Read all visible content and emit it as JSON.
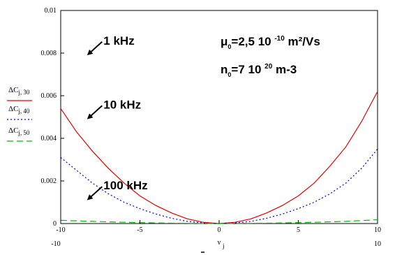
{
  "chart_data": {
    "type": "line",
    "xlabel_main": "v",
    "xlabel_sub": "j",
    "x_min_label": "-10",
    "x_max_label": "10",
    "xlim": [
      -10,
      10
    ],
    "ylim": [
      0,
      0.01
    ],
    "xticks": [
      -10,
      -5,
      0,
      5,
      10
    ],
    "yticks": [
      0,
      0.002,
      0.004,
      0.006,
      0.008,
      0.01
    ],
    "xtick_labels": [
      "-10",
      "-5",
      "0",
      "5",
      "10"
    ],
    "ytick_labels": [
      "0",
      "0.002",
      "0.004",
      "0.006",
      "0.008",
      "0.01"
    ],
    "grid": false,
    "legend": [
      {
        "main": "ΔC",
        "sub": "j, 30",
        "color": "#e00000",
        "dash": "solid"
      },
      {
        "main": "ΔC",
        "sub": "j, 40",
        "color": "#0000cc",
        "dash": "dotted"
      },
      {
        "main": "ΔC",
        "sub": "j, 50",
        "color": "#00bb00",
        "dash": "dashed"
      }
    ],
    "series": [
      {
        "color": "#e00000",
        "dash": "solid",
        "x": [
          -10,
          -9,
          -8,
          -7,
          -6,
          -5,
          -4,
          -3,
          -2,
          -1,
          0,
          1,
          2,
          3,
          4,
          5,
          6,
          7,
          8,
          9,
          10
        ],
        "values": [
          0.0054,
          0.0043,
          0.0034,
          0.0026,
          0.0019,
          0.0013,
          0.00085,
          0.0005,
          0.00022,
          6e-05,
          0,
          6e-05,
          0.00022,
          0.0005,
          0.00085,
          0.0013,
          0.0019,
          0.0027,
          0.0036,
          0.0048,
          0.0062
        ]
      },
      {
        "color": "#0000cc",
        "dash": "dotted",
        "x": [
          -10,
          -9,
          -8,
          -7,
          -6,
          -5,
          -4,
          -3,
          -2,
          -1,
          0,
          1,
          2,
          3,
          4,
          5,
          6,
          7,
          8,
          9,
          10
        ],
        "values": [
          0.0031,
          0.0025,
          0.0019,
          0.0014,
          0.001,
          0.0007,
          0.00045,
          0.00025,
          0.0001,
          3e-05,
          0,
          3e-05,
          0.0001,
          0.00025,
          0.00045,
          0.0007,
          0.001,
          0.0014,
          0.0019,
          0.0026,
          0.0035
        ]
      },
      {
        "color": "#00bb00",
        "dash": "dashed",
        "x": [
          -10,
          -8,
          -6,
          -4,
          -2,
          0,
          2,
          4,
          6,
          8,
          10
        ],
        "values": [
          0.00015,
          0.0001,
          6e-05,
          3e-05,
          1e-05,
          0,
          1e-05,
          3e-05,
          6e-05,
          0.0001,
          0.00018
        ]
      }
    ],
    "annotations": [
      {
        "text": "1 kHz",
        "x": -7.3,
        "y": 0.0084
      },
      {
        "text": "10 kHz",
        "x": -7.3,
        "y": 0.0054
      },
      {
        "text": "100 kHz",
        "x": -7.3,
        "y": 0.0016
      }
    ],
    "params": [
      {
        "main": "μ",
        "sub": "0",
        "rest1": "=2,5 10 ",
        "sup": "-10",
        "rest2": " m²/Vs"
      },
      {
        "main": "n",
        "sub": "0",
        "rest1": "=7 10 ",
        "sup": "20",
        "rest2": " m-3"
      }
    ]
  }
}
